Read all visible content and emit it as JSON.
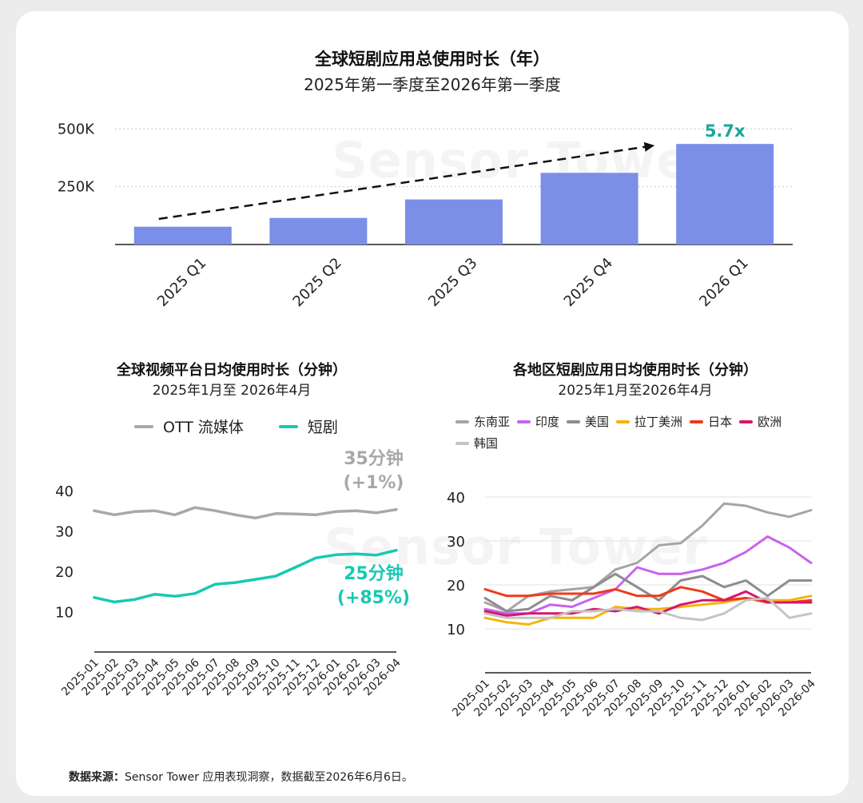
{
  "charts": {
    "top": {
      "title": "全球短剧应用总使用时长（年）",
      "subtitle": "2025年第一季度至2026年第一季度",
      "multiplier_label": "5.7x",
      "bar_color": "#7b8fe8",
      "accent_color": "#19a79a"
    },
    "left": {
      "title": "全球视频平台日均使用时长（分钟）",
      "subtitle": "2025年1月至 2026年4月",
      "annot_ott_value": "35分钟",
      "annot_ott_change": "(+1%)",
      "annot_short_value": "25分钟",
      "annot_short_change": "(+85%)"
    },
    "right": {
      "title": "各地区短剧应用日均使用时长（分钟）",
      "subtitle": "2025年1月至2026年4月"
    }
  },
  "watermark_text": "Sensor Tower",
  "source": {
    "label": "数据来源：",
    "text": "Sensor Tower 应用表现洞察，数据截至2026年6月6日。"
  },
  "chart_data": [
    {
      "type": "bar",
      "title": "全球短剧应用总使用时长（年）",
      "subtitle": "2025年第一季度至2026年第一季度",
      "categories": [
        "2025 Q1",
        "2025 Q2",
        "2025 Q3",
        "2025 Q4",
        "2026 Q1"
      ],
      "values": [
        77000,
        115000,
        195000,
        310000,
        435000
      ],
      "y_ticks": [
        "250K",
        "500K"
      ],
      "y_tick_values": [
        250000,
        500000
      ],
      "ylim": [
        0,
        560000
      ],
      "grid": true,
      "annotation": "5.7x"
    },
    {
      "type": "line",
      "title": "全球视频平台日均使用时长（分钟）",
      "subtitle": "2025年1月至 2026年4月",
      "categories": [
        "2025-01",
        "2025-02",
        "2025-03",
        "2025-04",
        "2025-05",
        "2025-06",
        "2025-07",
        "2025-08",
        "2025-09",
        "2025-10",
        "2025-11",
        "2025-12",
        "2026-01",
        "2026-02",
        "2026-03",
        "2026-04"
      ],
      "y_ticks": [
        10,
        20,
        30,
        40
      ],
      "ylim": [
        0,
        42
      ],
      "legend_position": "top",
      "series": [
        {
          "name": "OTT 流媒体",
          "color": "#a8a8a8",
          "values": [
            35,
            34,
            34.8,
            35,
            34,
            35.8,
            35,
            34,
            33.2,
            34.3,
            34.2,
            34,
            34.8,
            35,
            34.5,
            35.3
          ]
        },
        {
          "name": "短剧",
          "color": "#17c9b2",
          "values": [
            13.5,
            12.4,
            13,
            14.3,
            13.8,
            14.5,
            16.8,
            17.2,
            18,
            18.8,
            21,
            23.3,
            24.1,
            24.3,
            24,
            25.2
          ]
        }
      ]
    },
    {
      "type": "line",
      "title": "各地区短剧应用日均使用时长（分钟）",
      "subtitle": "2025年1月至2026年4月",
      "categories": [
        "2025-01",
        "2025-02",
        "2025-03",
        "2025-04",
        "2025-05",
        "2025-06",
        "2025-07",
        "2025-08",
        "2025-09",
        "2025-10",
        "2025-11",
        "2025-12",
        "2026-01",
        "2026-02",
        "2026-03",
        "2026-04"
      ],
      "y_ticks": [
        10,
        20,
        30,
        40
      ],
      "ylim": [
        0,
        43
      ],
      "legend_position": "top",
      "series": [
        {
          "name": "东南亚",
          "color": "#a5a5a5",
          "values": [
            16,
            14,
            17.5,
            18.5,
            19,
            19.5,
            23.5,
            25,
            29,
            29.5,
            33.5,
            38.5,
            38,
            36.5,
            35.5,
            37
          ]
        },
        {
          "name": "印度",
          "color": "#c862ee",
          "values": [
            14.5,
            13.5,
            13.5,
            15.5,
            15,
            17,
            19,
            24,
            22.5,
            22.5,
            23.5,
            25,
            27.5,
            31,
            28.5,
            25
          ]
        },
        {
          "name": "美国",
          "color": "#8d8d8d",
          "values": [
            17,
            14,
            14.5,
            17.5,
            16.5,
            19.5,
            22.5,
            19.5,
            16.5,
            21,
            22,
            19.5,
            21,
            17.5,
            21,
            21
          ]
        },
        {
          "name": "拉丁美洲",
          "color": "#f5b50a",
          "values": [
            12.5,
            11.5,
            11,
            12.5,
            12.5,
            12.5,
            15,
            14.5,
            14.5,
            15,
            15.5,
            16,
            17,
            16.5,
            16.5,
            17.5
          ]
        },
        {
          "name": "日本",
          "color": "#ee3a1c",
          "values": [
            19,
            17.5,
            17.5,
            18,
            18,
            18,
            19,
            17.5,
            17.5,
            19.5,
            18.5,
            16.5,
            17,
            16,
            16,
            16.5
          ]
        },
        {
          "name": "欧洲",
          "color": "#d6176b",
          "values": [
            14,
            13,
            13.5,
            13.5,
            13.5,
            14.5,
            14,
            15,
            13.5,
            15.5,
            16.5,
            16.5,
            18.5,
            16,
            16,
            16
          ]
        },
        {
          "name": "韩国",
          "color": "#c4c4c4",
          "values": [
            13.5,
            12.5,
            12.5,
            12.5,
            14,
            14,
            14.5,
            14,
            14,
            12.5,
            12,
            13.5,
            16.5,
            17,
            12.5,
            13.5
          ]
        }
      ]
    }
  ]
}
